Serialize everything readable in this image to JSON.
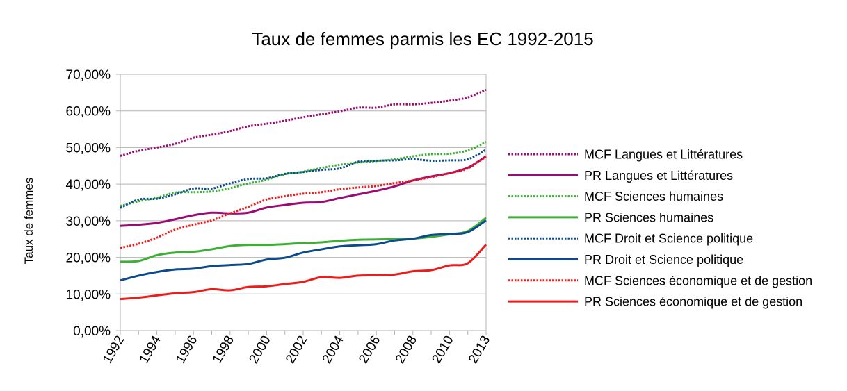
{
  "chart_data": {
    "type": "line",
    "title": "Taux de femmes parmis les EC 1992-2015",
    "xlabel": "",
    "ylabel": "Taux de femmes",
    "ylim": [
      0,
      70
    ],
    "y_ticks": [
      "0,00%",
      "10,00%",
      "20,00%",
      "30,00%",
      "40,00%",
      "50,00%",
      "60,00%",
      "70,00%"
    ],
    "x_tick_labels": [
      "1992",
      "1994",
      "1996",
      "1998",
      "2000",
      "2002",
      "2004",
      "2006",
      "2008",
      "2010",
      "2013"
    ],
    "categories": [
      "1992",
      "1993",
      "1994",
      "1995",
      "1996",
      "1997",
      "1998",
      "1999",
      "2000",
      "2001",
      "2002",
      "2003",
      "2004",
      "2005",
      "2006",
      "2007",
      "2008",
      "2009",
      "2010",
      "2011",
      "2013"
    ],
    "grid": true,
    "legend_position": "right",
    "series": [
      {
        "name": "MCF Langues et Littératures",
        "color": "#9b0b74",
        "dash": "dotted",
        "values": [
          47.7,
          49.1,
          50.0,
          51.0,
          52.7,
          53.5,
          54.5,
          55.8,
          56.5,
          57.3,
          58.3,
          59.1,
          59.9,
          60.9,
          60.9,
          61.8,
          61.8,
          62.2,
          62.8,
          63.7,
          65.8
        ]
      },
      {
        "name": "PR Langues et Littératures",
        "color": "#9b0b74",
        "dash": "solid",
        "values": [
          28.6,
          28.9,
          29.4,
          30.4,
          31.5,
          32.2,
          32.0,
          32.2,
          33.6,
          34.3,
          34.9,
          35.1,
          36.2,
          37.2,
          38.2,
          39.4,
          41.0,
          42.1,
          43.0,
          44.5,
          47.6
        ]
      },
      {
        "name": "MCF Sciences humaines",
        "color": "#3cb034",
        "dash": "dotted",
        "values": [
          34.0,
          35.3,
          36.3,
          37.7,
          37.8,
          38.0,
          38.9,
          40.2,
          41.2,
          42.7,
          43.4,
          44.4,
          45.3,
          45.9,
          46.3,
          46.8,
          47.6,
          48.2,
          48.3,
          49.2,
          51.5
        ]
      },
      {
        "name": "PR Sciences humaines",
        "color": "#3cb034",
        "dash": "solid",
        "values": [
          18.8,
          19.0,
          20.6,
          21.3,
          21.5,
          22.2,
          23.1,
          23.4,
          23.4,
          23.6,
          23.9,
          24.1,
          24.5,
          24.8,
          24.9,
          25.0,
          25.1,
          25.6,
          26.3,
          27.2,
          30.8
        ]
      },
      {
        "name": "MCF Droit et Science politique",
        "color": "#0d4a8c",
        "dash": "dotted",
        "values": [
          33.5,
          35.8,
          36.0,
          37.2,
          38.8,
          38.8,
          40.2,
          41.4,
          41.6,
          42.8,
          43.3,
          43.9,
          44.3,
          46.1,
          46.4,
          46.5,
          46.8,
          46.4,
          46.5,
          46.8,
          49.4
        ]
      },
      {
        "name": "PR Droit et Science politique",
        "color": "#0d4a8c",
        "dash": "solid",
        "values": [
          13.7,
          15.0,
          16.0,
          16.7,
          16.9,
          17.6,
          17.9,
          18.2,
          19.4,
          19.9,
          21.3,
          22.2,
          23.0,
          23.3,
          23.6,
          24.6,
          25.1,
          26.1,
          26.4,
          26.9,
          30.1
        ]
      },
      {
        "name": "MCF Sciences économique et de gestion",
        "color": "#ee1b1b",
        "dash": "dotted",
        "values": [
          22.6,
          23.7,
          25.4,
          27.6,
          28.9,
          30.1,
          32.0,
          33.8,
          35.8,
          36.7,
          37.4,
          37.8,
          38.6,
          39.1,
          39.5,
          40.3,
          41.0,
          41.9,
          43.0,
          44.3,
          47.5
        ]
      },
      {
        "name": "PR Sciences économique et de gestion",
        "color": "#ee1b1b",
        "dash": "solid",
        "values": [
          8.6,
          9.0,
          9.6,
          10.2,
          10.5,
          11.3,
          11.0,
          11.9,
          12.1,
          12.7,
          13.3,
          14.6,
          14.4,
          15.0,
          15.1,
          15.3,
          16.2,
          16.5,
          17.8,
          18.4,
          23.5
        ]
      }
    ]
  }
}
